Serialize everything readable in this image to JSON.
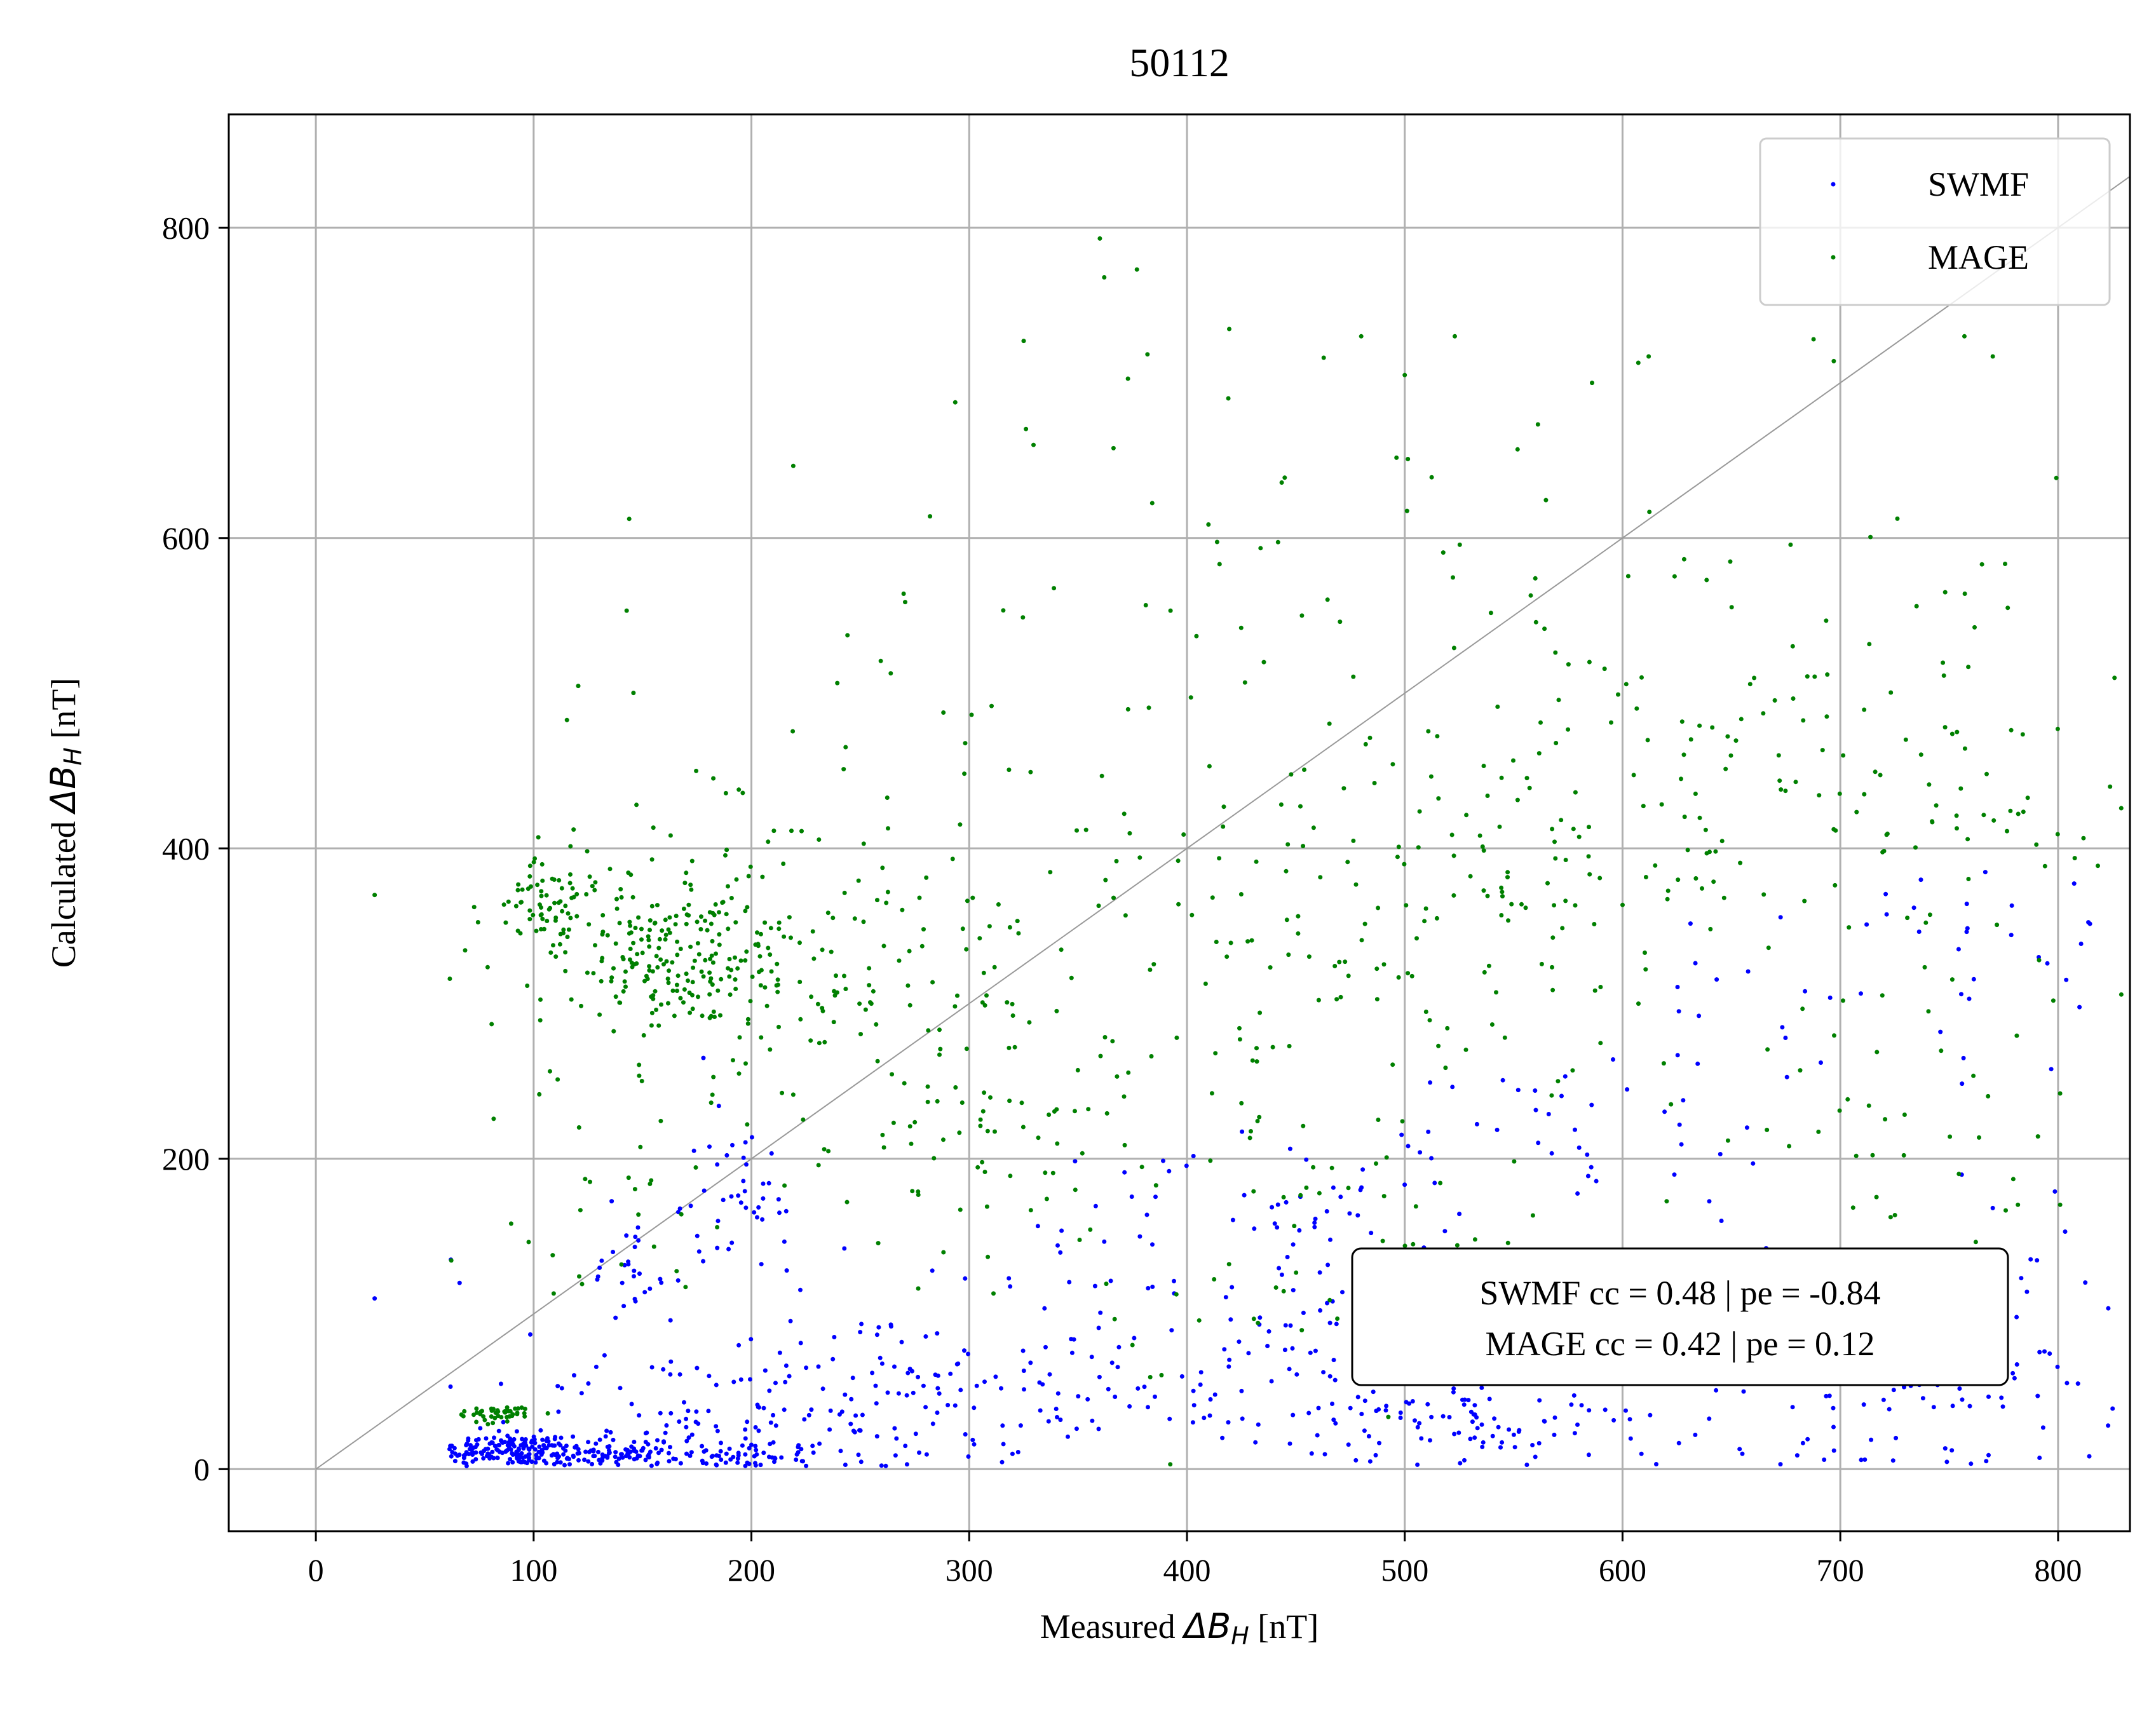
{
  "chart_data": {
    "type": "scatter",
    "title": "50112",
    "xlabel_prefix": "Measured ",
    "xlabel_math": "ΔB",
    "xlabel_sub": "H",
    "xlabel_suffix": " [nT]",
    "ylabel_prefix": "Calculated ",
    "ylabel_math": "ΔB",
    "ylabel_sub": "H",
    "ylabel_suffix": " [nT]",
    "xlim": [
      -40,
      833
    ],
    "ylim": [
      -40,
      873
    ],
    "xticks": [
      0,
      100,
      200,
      300,
      400,
      500,
      600,
      700,
      800
    ],
    "yticks": [
      0,
      200,
      400,
      600,
      800
    ],
    "grid": true,
    "reference_line": "y = x",
    "legend_position": "upper right",
    "series": [
      {
        "name": "SWMF",
        "color": "#0000ff",
        "clusters": [
          {
            "cx": 90,
            "cy": 13,
            "sx": 15,
            "sy": 5,
            "n": 120
          },
          {
            "cx": 150,
            "cy": 9,
            "sx": 50,
            "sy": 6,
            "n": 200
          },
          {
            "cx": 200,
            "cy": 35,
            "sx": 55,
            "sy": 22,
            "n": 120
          },
          {
            "cx": 290,
            "cy": 60,
            "sx": 60,
            "sy": 30,
            "n": 80
          },
          {
            "cx": 190,
            "cy": 180,
            "sx": 18,
            "sy": 30,
            "n": 45
          },
          {
            "cx": 145,
            "cy": 125,
            "sx": 12,
            "sy": 15,
            "n": 25
          },
          {
            "cx": 430,
            "cy": 70,
            "sx": 70,
            "sy": 35,
            "n": 110
          },
          {
            "cx": 520,
            "cy": 30,
            "sx": 40,
            "sy": 10,
            "n": 60
          },
          {
            "cx": 640,
            "cy": 60,
            "sx": 100,
            "sy": 40,
            "n": 110
          },
          {
            "cx": 760,
            "cy": 70,
            "sx": 50,
            "sy": 40,
            "n": 60
          },
          {
            "cx": 470,
            "cy": 160,
            "sx": 25,
            "sy": 25,
            "n": 30
          },
          {
            "cx": 560,
            "cy": 210,
            "sx": 60,
            "sy": 30,
            "n": 30
          },
          {
            "cx": 650,
            "cy": 300,
            "sx": 30,
            "sy": 40,
            "n": 20
          },
          {
            "cx": 760,
            "cy": 330,
            "sx": 40,
            "sy": 50,
            "n": 30
          },
          {
            "cx": 380,
            "cy": 170,
            "sx": 30,
            "sy": 50,
            "n": 20
          },
          {
            "cx": 600,
            "cy": 120,
            "sx": 120,
            "sy": 60,
            "n": 50
          }
        ],
        "points": [
          [
            27,
            110
          ],
          [
            62,
            135
          ],
          [
            66,
            120
          ],
          [
            64,
            10
          ],
          [
            79,
            10
          ],
          [
            85,
            55
          ]
        ]
      },
      {
        "name": "MAGE",
        "color": "#008000",
        "clusters": [
          {
            "cx": 160,
            "cy": 330,
            "sx": 22,
            "sy": 25,
            "n": 150
          },
          {
            "cx": 110,
            "cy": 365,
            "sx": 15,
            "sy": 12,
            "n": 60
          },
          {
            "cx": 180,
            "cy": 330,
            "sx": 50,
            "sy": 45,
            "n": 150
          },
          {
            "cx": 85,
            "cy": 35,
            "sx": 8,
            "sy": 3,
            "n": 45
          },
          {
            "cx": 280,
            "cy": 310,
            "sx": 60,
            "sy": 90,
            "n": 90
          },
          {
            "cx": 420,
            "cy": 320,
            "sx": 60,
            "sy": 90,
            "n": 110
          },
          {
            "cx": 540,
            "cy": 380,
            "sx": 60,
            "sy": 70,
            "n": 110
          },
          {
            "cx": 670,
            "cy": 440,
            "sx": 70,
            "sy": 80,
            "n": 110
          },
          {
            "cx": 780,
            "cy": 400,
            "sx": 40,
            "sy": 120,
            "n": 60
          },
          {
            "cx": 290,
            "cy": 200,
            "sx": 40,
            "sy": 30,
            "n": 40
          },
          {
            "cx": 470,
            "cy": 120,
            "sx": 60,
            "sy": 50,
            "n": 40
          },
          {
            "cx": 450,
            "cy": 600,
            "sx": 100,
            "sy": 90,
            "n": 40
          },
          {
            "cx": 250,
            "cy": 480,
            "sx": 60,
            "sy": 70,
            "n": 30
          },
          {
            "cx": 140,
            "cy": 180,
            "sx": 30,
            "sy": 40,
            "n": 25
          },
          {
            "cx": 740,
            "cy": 200,
            "sx": 60,
            "sy": 60,
            "n": 30
          }
        ],
        "points": [
          [
            27,
            370
          ],
          [
            360,
            793
          ],
          [
            362,
            768
          ],
          [
            377,
            773
          ],
          [
            325,
            727
          ],
          [
            480,
            730
          ],
          [
            523,
            730
          ],
          [
            612,
            717
          ],
          [
            770,
            717
          ],
          [
            757,
            730
          ],
          [
            697,
            714
          ],
          [
            419,
            690
          ],
          [
            282,
            614
          ],
          [
            500,
            705
          ],
          [
            586,
            700
          ]
        ]
      }
    ],
    "annotation": [
      "SWMF cc = 0.48 | pe = -0.84",
      "MAGE cc = 0.42 | pe = 0.12"
    ]
  }
}
